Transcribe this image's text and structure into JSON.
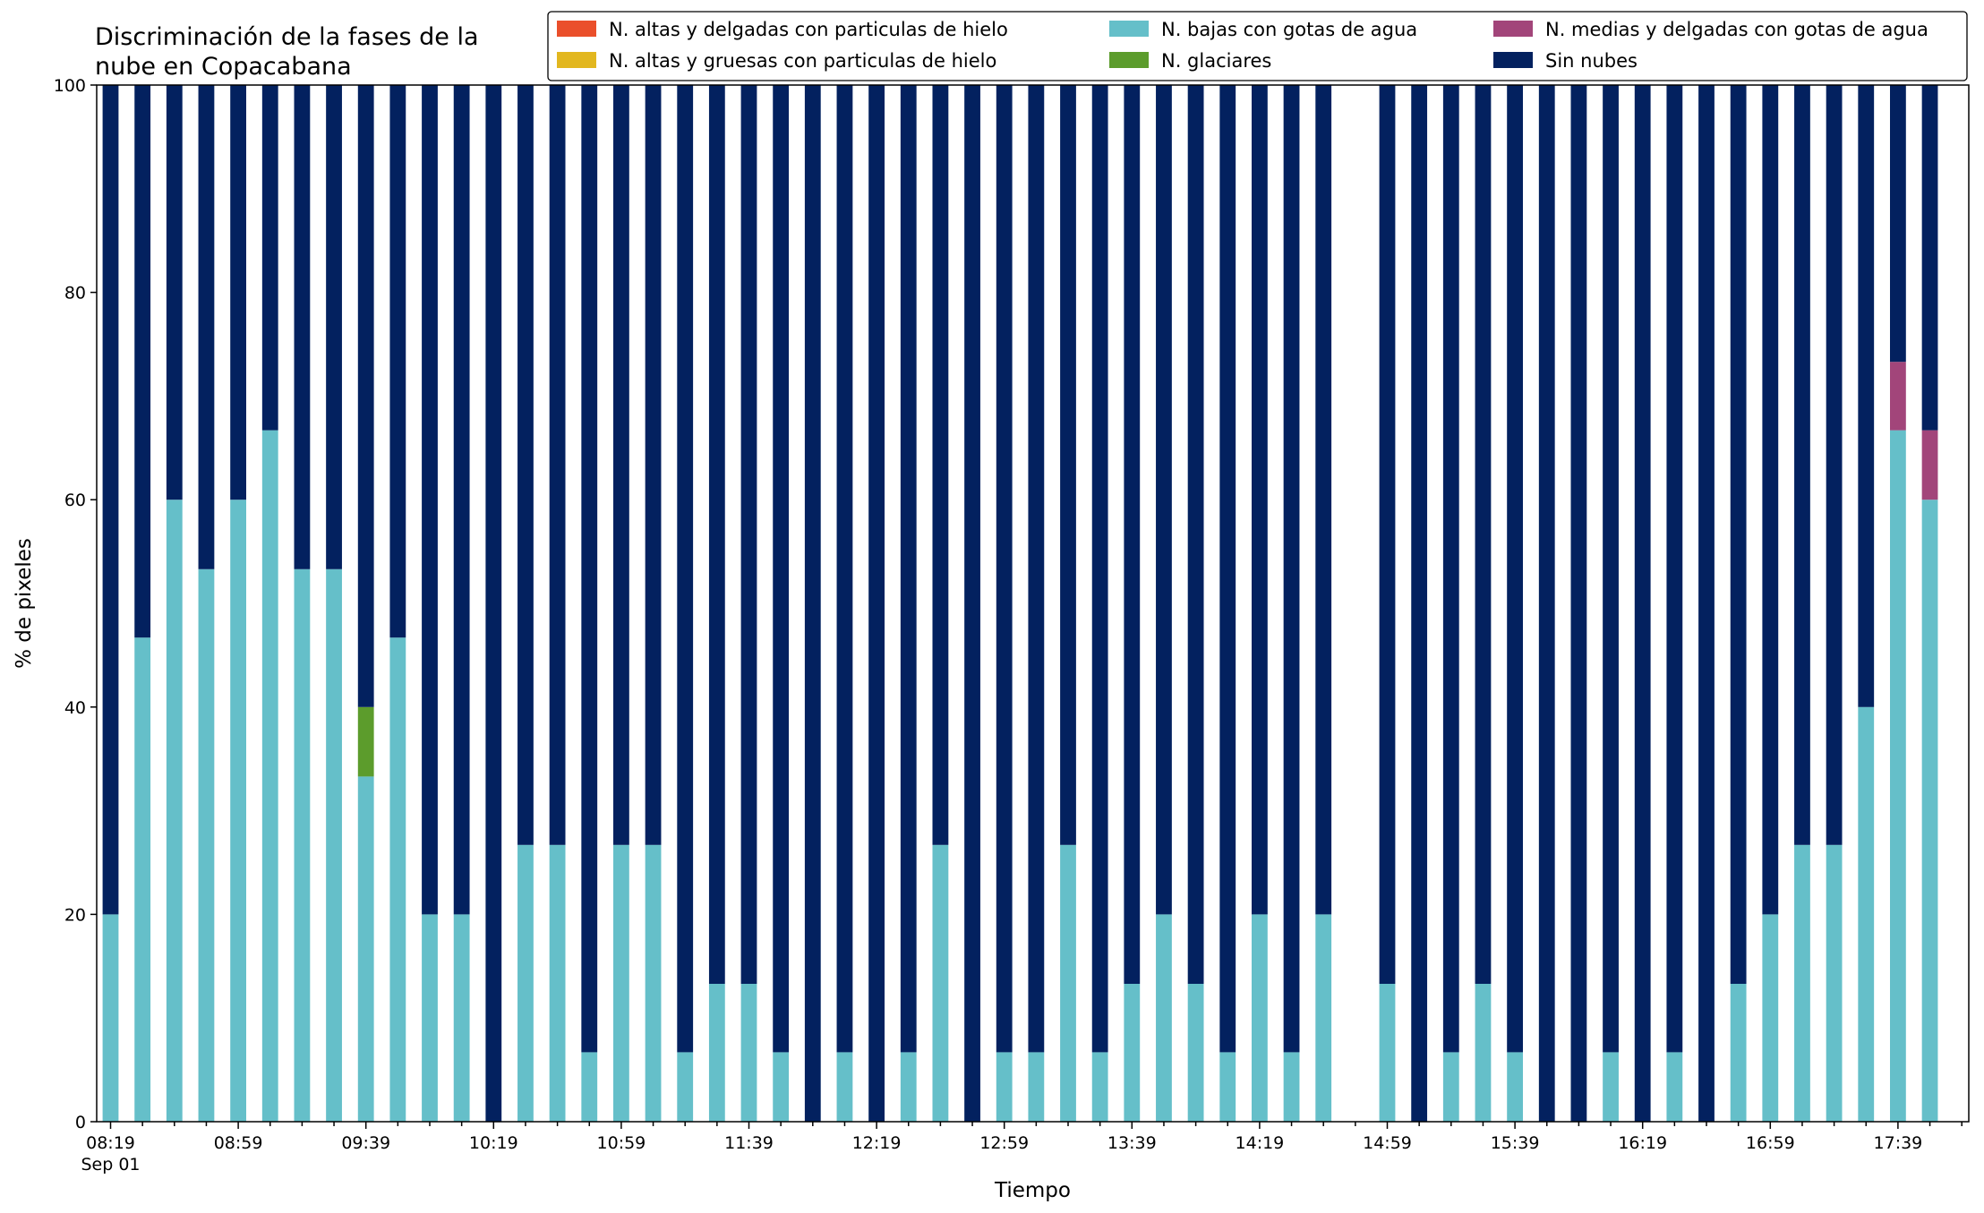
{
  "chart_data": {
    "type": "bar",
    "stacked": true,
    "title": "Discriminación de la fases de la\nnube en Copacabana",
    "xlabel": "Tiempo",
    "ylabel": "% de pixeles",
    "ylim": [
      0,
      100
    ],
    "yticks": [
      0,
      20,
      40,
      60,
      80,
      100
    ],
    "grid": false,
    "legend_position": "top-right",
    "x_date_label": "Sep 01",
    "categories": [
      "08:19",
      "08:29",
      "08:39",
      "08:49",
      "08:59",
      "09:09",
      "09:19",
      "09:29",
      "09:39",
      "09:49",
      "09:59",
      "10:09",
      "10:19",
      "10:29",
      "10:39",
      "10:49",
      "10:59",
      "11:09",
      "11:19",
      "11:29",
      "11:39",
      "11:49",
      "11:59",
      "12:09",
      "12:19",
      "12:29",
      "12:39",
      "12:49",
      "12:59",
      "13:09",
      "13:19",
      "13:29",
      "13:39",
      "13:49",
      "13:59",
      "14:09",
      "14:19",
      "14:29",
      "14:39",
      "14:49",
      "14:59",
      "15:09",
      "15:19",
      "15:29",
      "15:39",
      "15:49",
      "15:59",
      "16:09",
      "16:19",
      "16:29",
      "16:39",
      "16:49",
      "16:59",
      "17:09",
      "17:19",
      "17:29",
      "17:39",
      "17:49"
    ],
    "xtick_labels": [
      "08:19",
      "08:59",
      "09:39",
      "10:19",
      "10:59",
      "11:39",
      "12:19",
      "12:59",
      "13:39",
      "14:19",
      "14:59",
      "15:39",
      "16:19",
      "16:59",
      "17:39"
    ],
    "series": [
      {
        "name": "N. altas y delgadas con particulas de hielo",
        "color": "#ea4f2b",
        "values": [
          0,
          0,
          0,
          0,
          0,
          0,
          0,
          0,
          0,
          0,
          0,
          0,
          0,
          0,
          0,
          0,
          0,
          0,
          0,
          0,
          0,
          0,
          0,
          0,
          0,
          0,
          0,
          0,
          0,
          0,
          0,
          0,
          0,
          0,
          0,
          0,
          0,
          0,
          0,
          0,
          0,
          0,
          0,
          0,
          0,
          0,
          0,
          0,
          0,
          0,
          0,
          0,
          0,
          0,
          0,
          0,
          0,
          0
        ]
      },
      {
        "name": "N. altas y gruesas con particulas de hielo",
        "color": "#e2b71f",
        "values": [
          0,
          0,
          0,
          0,
          0,
          0,
          0,
          0,
          0,
          0,
          0,
          0,
          0,
          0,
          0,
          0,
          0,
          0,
          0,
          0,
          0,
          0,
          0,
          0,
          0,
          0,
          0,
          0,
          0,
          0,
          0,
          0,
          0,
          0,
          0,
          0,
          0,
          0,
          0,
          0,
          0,
          0,
          0,
          0,
          0,
          0,
          0,
          0,
          0,
          0,
          0,
          0,
          0,
          0,
          0,
          0,
          0,
          0
        ]
      },
      {
        "name": "N. bajas con gotas de agua",
        "color": "#65bfc9",
        "values": [
          20,
          46.7,
          60,
          53.3,
          60,
          66.7,
          53.3,
          53.3,
          33.3,
          46.7,
          20,
          20,
          0,
          26.7,
          26.7,
          6.7,
          26.7,
          26.7,
          6.7,
          13.3,
          13.3,
          6.7,
          0,
          6.7,
          0,
          6.7,
          26.7,
          0,
          6.7,
          6.7,
          26.7,
          6.7,
          13.3,
          20,
          13.3,
          6.7,
          20,
          6.7,
          20,
          0,
          13.3,
          0,
          6.7,
          13.3,
          6.7,
          0,
          0,
          6.7,
          0,
          6.7,
          0,
          13.3,
          20,
          26.7,
          26.7,
          40,
          66.7,
          60
        ]
      },
      {
        "name": "N. glaciares",
        "color": "#5c9c2c",
        "values": [
          0,
          0,
          0,
          0,
          0,
          0,
          0,
          0,
          6.7,
          0,
          0,
          0,
          0,
          0,
          0,
          0,
          0,
          0,
          0,
          0,
          0,
          0,
          0,
          0,
          0,
          0,
          0,
          0,
          0,
          0,
          0,
          0,
          0,
          0,
          0,
          0,
          0,
          0,
          0,
          0,
          0,
          0,
          0,
          0,
          0,
          0,
          0,
          0,
          0,
          0,
          0,
          0,
          0,
          0,
          0,
          0,
          0,
          0
        ]
      },
      {
        "name": "N. medias y delgadas con gotas de agua",
        "color": "#a2457a",
        "values": [
          0,
          0,
          0,
          0,
          0,
          0,
          0,
          0,
          0,
          0,
          0,
          0,
          0,
          0,
          0,
          0,
          0,
          0,
          0,
          0,
          0,
          0,
          0,
          0,
          0,
          0,
          0,
          0,
          0,
          0,
          0,
          0,
          0,
          0,
          0,
          0,
          0,
          0,
          0,
          0,
          0,
          0,
          0,
          0,
          0,
          0,
          0,
          0,
          0,
          0,
          0,
          0,
          0,
          0,
          0,
          0,
          6.6,
          6.7
        ]
      },
      {
        "name": "Sin nubes",
        "color": "#03215f",
        "values": [
          80,
          53.3,
          40,
          46.7,
          40,
          33.3,
          46.7,
          46.7,
          60,
          53.3,
          80,
          80,
          100,
          73.3,
          73.3,
          93.3,
          73.3,
          73.3,
          93.3,
          86.7,
          86.7,
          93.3,
          100,
          93.3,
          100,
          93.3,
          73.3,
          100,
          93.3,
          93.3,
          73.3,
          93.3,
          86.7,
          80,
          86.7,
          93.3,
          80,
          93.3,
          80,
          0,
          86.7,
          100,
          93.3,
          86.7,
          93.3,
          100,
          100,
          93.3,
          100,
          93.3,
          100,
          86.7,
          80,
          73.3,
          73.3,
          60,
          26.7,
          33.3
        ]
      }
    ],
    "legend_order": [
      "N. altas y delgadas con particulas de hielo",
      "N. altas y gruesas con particulas de hielo",
      "N. bajas con gotas de agua",
      "N. glaciares",
      "N. medias y delgadas con gotas de agua",
      "Sin nubes"
    ]
  }
}
